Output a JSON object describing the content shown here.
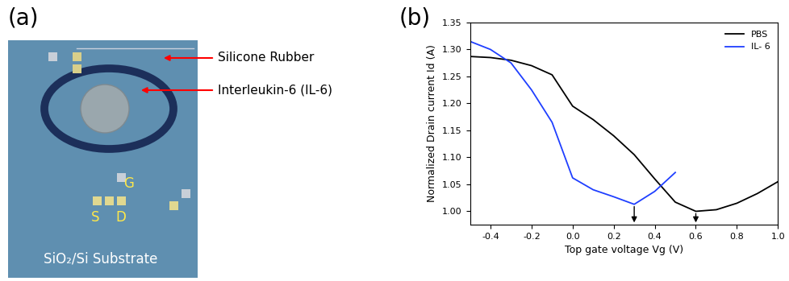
{
  "panel_a": {
    "label": "(a)",
    "labels": {
      "ring": "Silicone Rubber",
      "spot": "Interleukin-6 (IL-6)",
      "gate": "G",
      "source": "S",
      "drain": "D",
      "substrate": "SiO₂/Si Substrate"
    }
  },
  "chart_data": {
    "type": "line",
    "panel_label": "(b)",
    "x_label": "Top gate voltage Vg (V)",
    "y_label": "Normalized Drain current Id (A)",
    "xlim": [
      -0.5,
      1.0
    ],
    "xticks": [
      -0.4,
      -0.2,
      0.0,
      0.2,
      0.4,
      0.6,
      0.8,
      1.0
    ],
    "ylim": [
      0.975,
      1.35
    ],
    "yticks": [
      {
        "value": 1.0,
        "label": "1.00"
      },
      {
        "value": 1.05,
        "label": "1.05"
      },
      {
        "value": 1.1,
        "label": "1.10"
      },
      {
        "value": 1.15,
        "label": "1.15"
      },
      {
        "value": 1.2,
        "label": "1.20"
      },
      {
        "value": 1.25,
        "label": "1.25"
      },
      {
        "value": 1.3,
        "label": "1.30"
      },
      {
        "value": 1.35,
        "label": "1.35"
      }
    ],
    "legend": "upper right",
    "arrows_x": [
      0.3,
      0.6
    ],
    "series": [
      {
        "name": "PBS",
        "color": "#000000",
        "x": [
          -0.5,
          -0.4,
          -0.3,
          -0.2,
          -0.1,
          0.0,
          0.1,
          0.2,
          0.3,
          0.4,
          0.5,
          0.6,
          0.7,
          0.8,
          0.9,
          1.0
        ],
        "values": [
          1.287,
          1.285,
          1.28,
          1.27,
          1.253,
          1.195,
          1.17,
          1.14,
          1.105,
          1.06,
          1.017,
          1.0,
          1.003,
          1.015,
          1.033,
          1.055
        ]
      },
      {
        "name": "IL- 6",
        "color": "#1f3fff",
        "x": [
          -0.5,
          -0.4,
          -0.3,
          -0.2,
          -0.1,
          0.0,
          0.1,
          0.2,
          0.3,
          0.4,
          0.5
        ],
        "values": [
          1.315,
          1.3,
          1.275,
          1.225,
          1.165,
          1.062,
          1.04,
          1.027,
          1.013,
          1.037,
          1.072
        ]
      }
    ]
  }
}
